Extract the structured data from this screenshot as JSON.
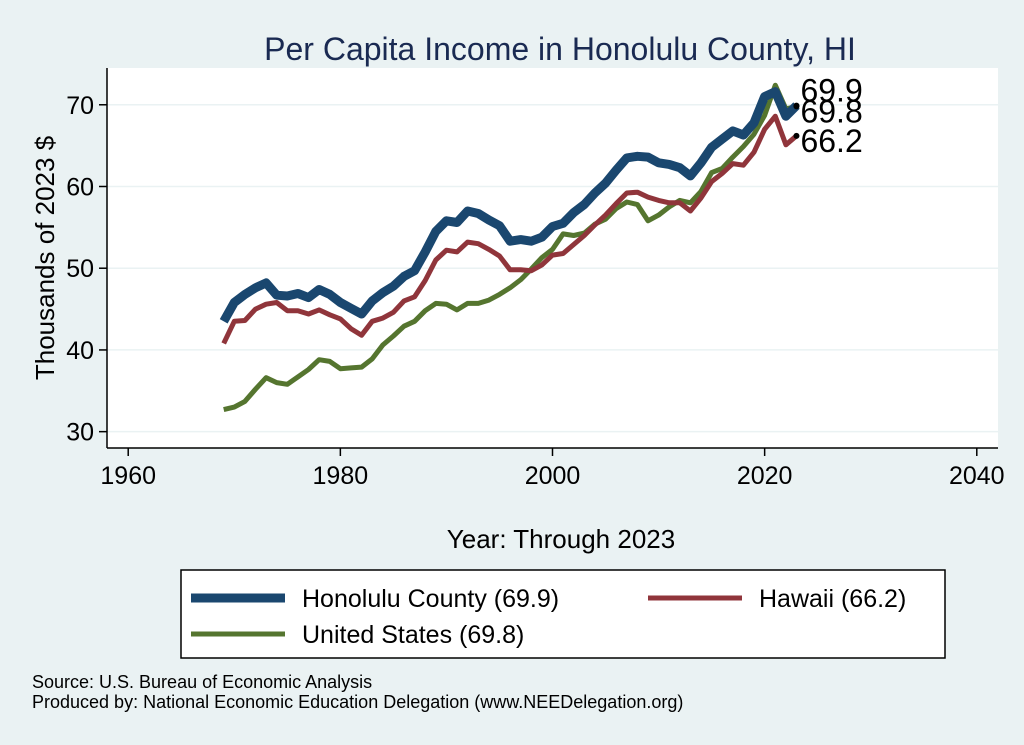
{
  "chart_data": {
    "type": "line",
    "title": "Per Capita Income in Honolulu County, HI",
    "xlabel": "Year: Through 2023",
    "ylabel": "Thousands of 2023 $",
    "xlim": [
      1958,
      2042
    ],
    "ylim": [
      28,
      74.5
    ],
    "xticks": [
      1960,
      1980,
      2000,
      2020,
      2040
    ],
    "yticks": [
      30,
      40,
      50,
      60,
      70
    ],
    "grid": true,
    "legend_position": "bottom",
    "x": [
      1969,
      1970,
      1971,
      1972,
      1973,
      1974,
      1975,
      1976,
      1977,
      1978,
      1979,
      1980,
      1981,
      1982,
      1983,
      1984,
      1985,
      1986,
      1987,
      1988,
      1989,
      1990,
      1991,
      1992,
      1993,
      1994,
      1995,
      1996,
      1997,
      1998,
      1999,
      2000,
      2001,
      2002,
      2003,
      2004,
      2005,
      2006,
      2007,
      2008,
      2009,
      2010,
      2011,
      2012,
      2013,
      2014,
      2015,
      2016,
      2017,
      2018,
      2019,
      2020,
      2021,
      2022,
      2023
    ],
    "series": [
      {
        "name": "Honolulu County",
        "legend_label": "Honolulu County (69.9)",
        "end_label": "69.9",
        "color": "#1a476f",
        "values": [
          43.5,
          45.8,
          46.8,
          47.6,
          48.2,
          46.7,
          46.6,
          46.9,
          46.4,
          47.4,
          46.8,
          45.8,
          45.1,
          44.4,
          46.0,
          47.0,
          47.8,
          49.0,
          49.7,
          52.0,
          54.5,
          55.8,
          55.6,
          57.0,
          56.7,
          55.9,
          55.2,
          53.3,
          53.5,
          53.3,
          53.8,
          55.1,
          55.5,
          56.8,
          57.8,
          59.2,
          60.4,
          62.0,
          63.5,
          63.7,
          63.6,
          62.9,
          62.7,
          62.3,
          61.3,
          62.9,
          64.8,
          65.8,
          66.8,
          66.3,
          67.8,
          71.0,
          71.6,
          68.6,
          69.9
        ]
      },
      {
        "name": "Hawaii",
        "legend_label": "Hawaii (66.2)",
        "end_label": "66.2",
        "color": "#90353b",
        "values": [
          40.8,
          43.5,
          43.6,
          45.0,
          45.6,
          45.8,
          44.8,
          44.8,
          44.4,
          44.9,
          44.3,
          43.8,
          42.6,
          41.8,
          43.5,
          43.9,
          44.6,
          46.0,
          46.5,
          48.5,
          51.0,
          52.2,
          52.0,
          53.2,
          53.0,
          52.3,
          51.5,
          49.8,
          49.8,
          49.7,
          50.4,
          51.6,
          51.8,
          52.9,
          54.0,
          55.3,
          56.5,
          57.9,
          59.2,
          59.3,
          58.7,
          58.3,
          58.0,
          58.0,
          57.0,
          58.6,
          60.6,
          61.6,
          62.8,
          62.6,
          64.2,
          67.0,
          68.6,
          65.1,
          66.2
        ]
      },
      {
        "name": "United States",
        "legend_label": "United States (69.8)",
        "end_label": "69.8",
        "color": "#55752f",
        "values": [
          32.7,
          33.0,
          33.7,
          35.2,
          36.6,
          36.0,
          35.8,
          36.7,
          37.6,
          38.8,
          38.6,
          37.7,
          37.8,
          37.9,
          38.9,
          40.6,
          41.7,
          42.9,
          43.5,
          44.8,
          45.7,
          45.6,
          44.9,
          45.7,
          45.7,
          46.1,
          46.8,
          47.6,
          48.6,
          49.9,
          51.3,
          52.3,
          54.2,
          54.0,
          54.3,
          55.4,
          56.0,
          57.3,
          58.1,
          57.8,
          55.8,
          56.5,
          57.5,
          58.3,
          58.0,
          59.4,
          61.7,
          62.2,
          63.6,
          64.9,
          66.4,
          68.7,
          72.4,
          69.5,
          69.8
        ]
      }
    ]
  },
  "source": {
    "line1": "Source: U.S. Bureau of Economic Analysis",
    "line2": "Produced by: National Economic Education Delegation (www.NEEDelegation.org)"
  }
}
